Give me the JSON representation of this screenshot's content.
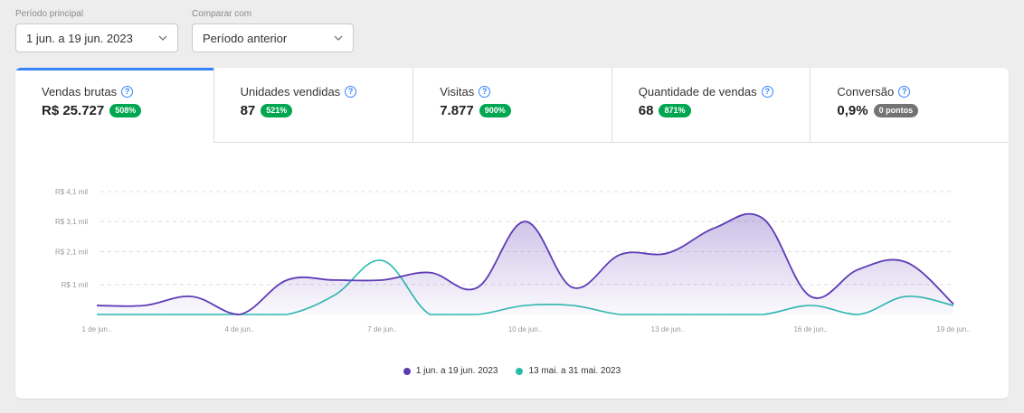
{
  "filters": {
    "main_period": {
      "label": "Período principal",
      "value": "1 jun. a 19 jun. 2023"
    },
    "compare": {
      "label": "Comparar com",
      "value": "Período anterior"
    }
  },
  "tabs": [
    {
      "title": "Vendas brutas",
      "value": "R$ 25.727",
      "badge": "508%",
      "badge_color": "#00a650"
    },
    {
      "title": "Unidades vendidas",
      "value": "87",
      "badge": "521%",
      "badge_color": "#00a650"
    },
    {
      "title": "Visitas",
      "value": "7.877",
      "badge": "900%",
      "badge_color": "#00a650"
    },
    {
      "title": "Quantidade de vendas",
      "value": "68",
      "badge": "871%",
      "badge_color": "#00a650"
    },
    {
      "title": "Conversão",
      "value": "0,9%",
      "badge": "0 pontos",
      "badge_color": "#737373"
    }
  ],
  "help_icon": "?",
  "colors": {
    "accent": "#3483fa",
    "primary_series": "#5e3bb5",
    "compare_series": "#2bbbad"
  },
  "chart_data": {
    "type": "area",
    "ytick_labels": [
      "R$ 1 mil",
      "R$ 2,1 mil",
      "R$ 3,1 mil",
      "R$ 4,1 mil"
    ],
    "ytick_values": [
      1,
      2.1,
      3.1,
      4.1
    ],
    "ylim": [
      0,
      4.1
    ],
    "x_labels": [
      "1 de jun..",
      "4 de jun..",
      "7 de jun..",
      "10 de jun..",
      "13 de jun..",
      "16 de jun..",
      "19 de jun.."
    ],
    "x_label_days": [
      1,
      4,
      7,
      10,
      13,
      16,
      19
    ],
    "grid": true,
    "legend_position": "bottom",
    "series": [
      {
        "name": "1 jun. a 19 jun. 2023",
        "color": "#5e3bb5",
        "x": [
          1,
          2,
          3,
          4,
          5,
          6,
          7,
          8,
          9,
          10,
          11,
          12,
          13,
          14,
          15,
          16,
          17,
          18,
          19
        ],
        "values": [
          0.3,
          0.3,
          0.6,
          0.0,
          1.15,
          1.15,
          1.15,
          1.4,
          0.9,
          3.1,
          0.9,
          2.0,
          2.05,
          2.9,
          3.2,
          0.6,
          1.5,
          1.75,
          0.35
        ]
      },
      {
        "name": "13 mai. a 31 mai. 2023",
        "color": "#2bbbad",
        "x": [
          1,
          2,
          3,
          4,
          5,
          6,
          7,
          8,
          9,
          10,
          11,
          12,
          13,
          14,
          15,
          16,
          17,
          18,
          19
        ],
        "values": [
          0.0,
          0.0,
          0.0,
          0.0,
          0.0,
          0.65,
          1.8,
          0.0,
          0.0,
          0.3,
          0.3,
          0.0,
          0.0,
          0.0,
          0.0,
          0.3,
          0.0,
          0.6,
          0.3
        ]
      }
    ]
  }
}
